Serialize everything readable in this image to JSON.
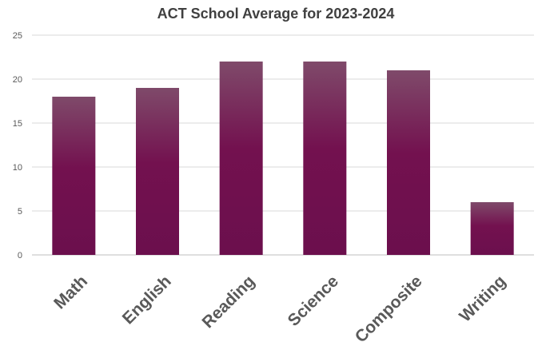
{
  "chart_data": {
    "type": "bar",
    "title": "ACT School Average for 2023-2024",
    "categories": [
      "Math",
      "English",
      "Reading",
      "Science",
      "Composite",
      "Writing"
    ],
    "values": [
      18,
      19,
      22,
      22,
      21,
      6
    ],
    "ylim": [
      0,
      25
    ],
    "yticks": [
      0,
      5,
      10,
      15,
      20,
      25
    ],
    "grid": true,
    "legend": "none",
    "colors": {
      "bar_top": "#7f4a6a",
      "bar_bottom": "#6b0f4d",
      "grid": "#d9d9d9",
      "text": "#595959"
    }
  }
}
